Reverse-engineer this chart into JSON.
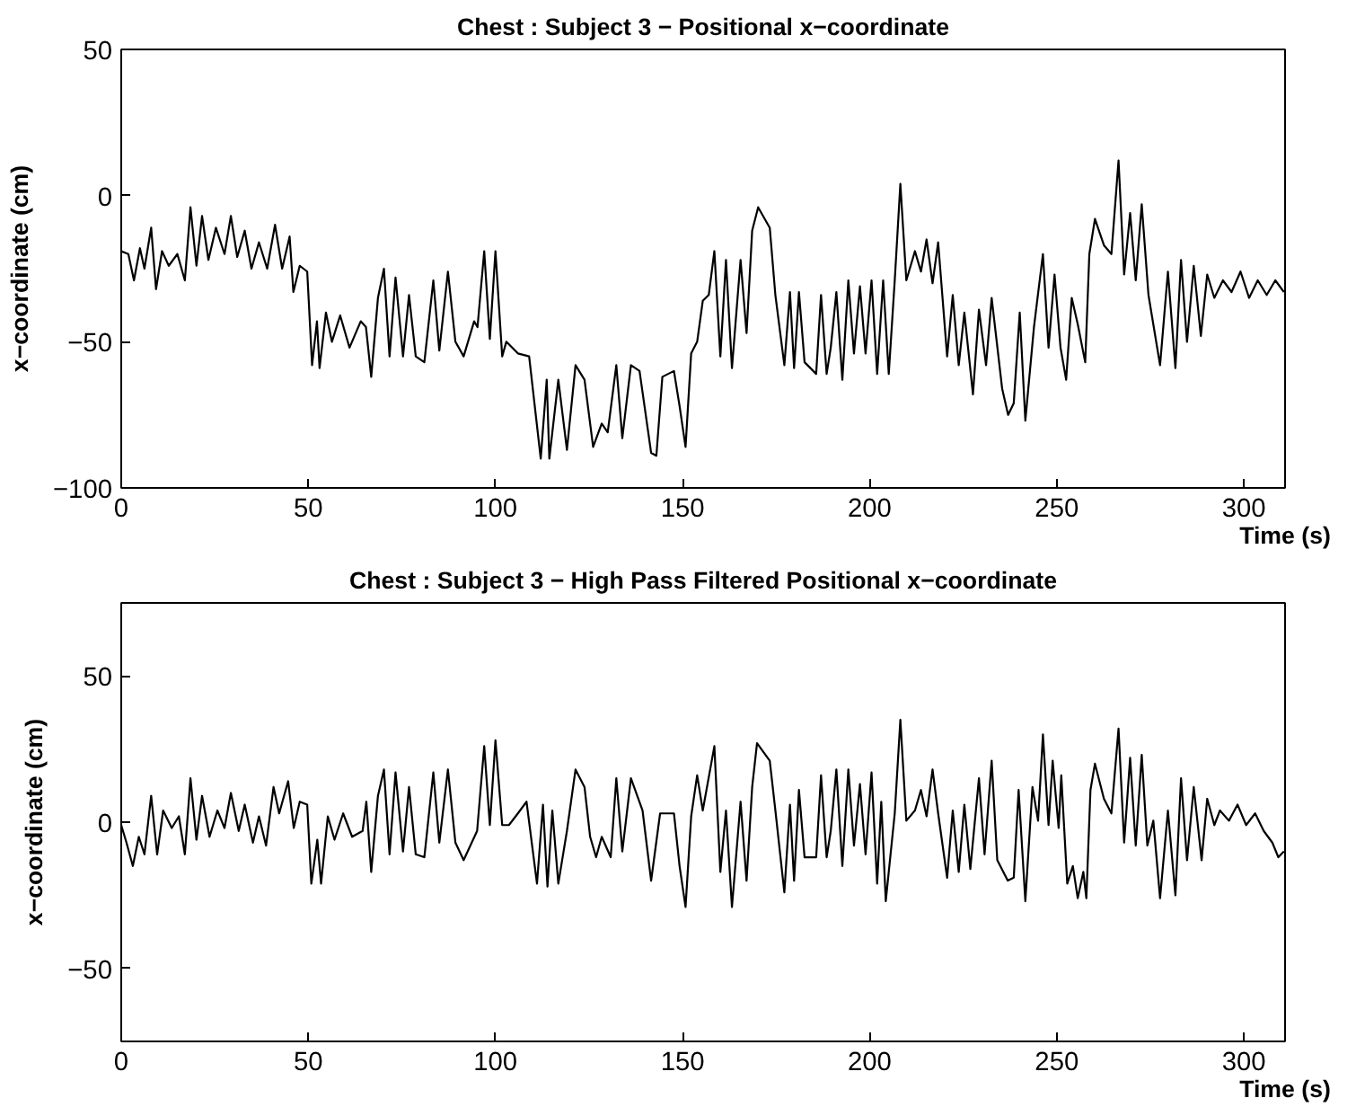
{
  "chart_data": [
    {
      "type": "line",
      "title": "Chest : Subject 3 − Positional x−coordinate",
      "xlabel": "Time (s)",
      "ylabel": "x−coordinate (cm)",
      "xlim": [
        0,
        311
      ],
      "ylim": [
        -100,
        50
      ],
      "xticks": [
        0,
        50,
        100,
        150,
        200,
        250,
        300
      ],
      "yticks": [
        -100,
        -50,
        0,
        50
      ],
      "series": [
        {
          "color": "#000000",
          "x": [
            0,
            1.9,
            3.4,
            5,
            6.2,
            8,
            9.3,
            10.9,
            12.7,
            15,
            17,
            18.5,
            20.1,
            21.6,
            23.3,
            25.3,
            27.6,
            29.3,
            31,
            33,
            34.8,
            36.8,
            39,
            41.1,
            43,
            45,
            46,
            47.7,
            49.7,
            51,
            52.3,
            53,
            54.7,
            56.3,
            58.5,
            61,
            64,
            65.4,
            66.8,
            68.6,
            70.2,
            71.7,
            73.3,
            75.3,
            76.9,
            78.7,
            81,
            83.4,
            85,
            87.3,
            89.3,
            91.5,
            94.3,
            95.2,
            97,
            98.5,
            100,
            101.8,
            102.9,
            106,
            109,
            112.1,
            113.7,
            114.4,
            116.8,
            119.1,
            121.4,
            123.8,
            126.1,
            128.4,
            130,
            132.3,
            133.9,
            136.2,
            138.5,
            141.6,
            143,
            144.6,
            147.7,
            149.2,
            150.8,
            152.3,
            153.9,
            155.4,
            157,
            158.5,
            160.1,
            161.6,
            163.2,
            165.5,
            167.1,
            168.6,
            170.2,
            173.3,
            174.8,
            177.2,
            178.7,
            179.8,
            181.1,
            182.6,
            185.7,
            187,
            188.5,
            189.6,
            191.1,
            192.7,
            194.3,
            195.8,
            197.4,
            198.9,
            200.5,
            202,
            203.6,
            205.1,
            206.7,
            208.2,
            209.8,
            212.1,
            213.7,
            215.2,
            216.8,
            218.3,
            220.7,
            222.2,
            223.8,
            225.3,
            227.6,
            229.2,
            231.1,
            232.6,
            235.4,
            237,
            238.5,
            240.1,
            241.6,
            243.9,
            246.3,
            247.8,
            249.4,
            251,
            252.5,
            254,
            255.6,
            257.6,
            258.7,
            260.2,
            262.6,
            264.6,
            266.5,
            268,
            269.6,
            271.1,
            272.7,
            274.5,
            277.6,
            279.7,
            281.7,
            283.2,
            284.8,
            286.6,
            288.5,
            290.2,
            292.1,
            294.4,
            296.7,
            299.1,
            301.4,
            303.7,
            306.1,
            308.4,
            310.7
          ],
          "values": [
            -19,
            -20,
            -29,
            -18,
            -25,
            -11,
            -32,
            -19,
            -24,
            -20,
            -29,
            -4,
            -24,
            -7,
            -22,
            -11,
            -20,
            -7,
            -21,
            -12,
            -25,
            -16,
            -25,
            -10,
            -25,
            -14,
            -33,
            -24,
            -26,
            -58,
            -43,
            -59,
            -40,
            -50,
            -41,
            -52,
            -43,
            -45,
            -62,
            -35,
            -25,
            -55,
            -28,
            -55,
            -34,
            -55,
            -57,
            -29,
            -53,
            -26,
            -50,
            -55,
            -43,
            -45,
            -19,
            -49,
            -19,
            -55,
            -50,
            -54,
            -55,
            -90,
            -63,
            -90,
            -63,
            -87,
            -58,
            -63,
            -86,
            -78,
            -81,
            -58,
            -83,
            -58,
            -60,
            -88,
            -89,
            -62,
            -60,
            -72,
            -86,
            -54,
            -50,
            -36,
            -34,
            -19,
            -55,
            -22,
            -59,
            -22,
            -47,
            -12,
            -4,
            -11,
            -34,
            -58,
            -33,
            -59,
            -33,
            -57,
            -61,
            -34,
            -61,
            -52,
            -33,
            -63,
            -29,
            -54,
            -31,
            -54,
            -29,
            -61,
            -29,
            -61,
            -29,
            4,
            -29,
            -19,
            -26,
            -15,
            -30,
            -16,
            -55,
            -34,
            -58,
            -40,
            -68,
            -39,
            -58,
            -35,
            -66,
            -75,
            -71,
            -40,
            -77,
            -45,
            -20,
            -52,
            -27,
            -52,
            -63,
            -35,
            -44,
            -57,
            -20,
            -8,
            -17,
            -20,
            12,
            -27,
            -6,
            -29,
            -3,
            -34,
            -58,
            -26,
            -59,
            -22,
            -50,
            -24,
            -48,
            -27,
            -35,
            -29,
            -33,
            -26,
            -35,
            -29,
            -34,
            -29,
            -33
          ]
        }
      ]
    },
    {
      "type": "line",
      "title": "Chest : Subject 3 − High Pass Filtered Positional x−coordinate",
      "xlabel": "Time (s)",
      "ylabel": "x−coordinate (cm)",
      "xlim": [
        0,
        311
      ],
      "ylim": [
        -75,
        75
      ],
      "xticks": [
        0,
        50,
        100,
        150,
        200,
        250,
        300
      ],
      "yticks": [
        -50,
        0,
        50
      ],
      "series": [
        {
          "color": "#000000",
          "x": [
            0,
            1.4,
            3.1,
            4.7,
            6.2,
            8,
            9.6,
            11.2,
            13.5,
            15.4,
            17,
            18.5,
            20.1,
            21.6,
            23.6,
            25.7,
            27.6,
            29.3,
            31.4,
            33,
            35.2,
            36.8,
            38.7,
            40.7,
            42.2,
            44.6,
            46.1,
            47.7,
            49.7,
            50.8,
            52.4,
            53.4,
            55.2,
            57,
            59.3,
            61.7,
            64.5,
            65.5,
            66.8,
            68.6,
            70.2,
            71.7,
            73.3,
            75.3,
            76.9,
            78.7,
            81,
            83.4,
            85,
            87.3,
            89.3,
            91.5,
            95.1,
            97,
            98.5,
            100,
            101.8,
            103.6,
            106,
            108.3,
            111.1,
            112.7,
            113.9,
            115.2,
            116.8,
            119.1,
            121.4,
            123.8,
            125.3,
            126.9,
            128.4,
            130.8,
            132.3,
            133.9,
            136.2,
            139.3,
            141.6,
            144,
            147.7,
            149.2,
            150.8,
            152.3,
            153.9,
            155.4,
            158.5,
            160.1,
            161.6,
            163.2,
            165.5,
            167.1,
            168.6,
            169.9,
            173.3,
            174.8,
            177.2,
            178.7,
            179.8,
            181.1,
            182.6,
            185.7,
            187,
            188.5,
            189.6,
            191.1,
            192.7,
            194.3,
            195.8,
            197.4,
            198.9,
            200.5,
            202,
            203.1,
            204.3,
            206.7,
            208.2,
            209.8,
            212.1,
            213.7,
            215.2,
            216.8,
            218.3,
            220.7,
            222.2,
            223.8,
            225.3,
            226.9,
            229.2,
            230.7,
            232.6,
            234.1,
            236.9,
            238.5,
            239.8,
            241.6,
            243.5,
            245,
            246.3,
            247.8,
            248.9,
            250.5,
            251.2,
            252.8,
            254.3,
            255.6,
            257.1,
            257.9,
            259,
            260.2,
            262.6,
            264.6,
            266.5,
            268,
            269.6,
            271.1,
            272.7,
            274.2,
            275.8,
            277.6,
            279.7,
            281.7,
            283.2,
            284.8,
            286.6,
            288.7,
            290.2,
            292.1,
            293.6,
            296,
            298.3,
            300.6,
            303,
            305.3,
            307.6,
            309.2,
            310.7
          ],
          "values": [
            -1,
            -7,
            -15,
            -5,
            -11,
            9,
            -11,
            4,
            -2,
            2,
            -11,
            15,
            -6,
            9,
            -5,
            4,
            -2,
            10,
            -3,
            6,
            -7,
            2,
            -8,
            12,
            3,
            14,
            -2,
            7,
            6,
            -21,
            -6,
            -21,
            2,
            -6,
            3,
            -5,
            -3,
            7,
            -17,
            9,
            18,
            -11,
            17,
            -10,
            12,
            -11,
            -12,
            17,
            -7,
            18,
            -7,
            -13,
            -3,
            26,
            -1,
            28,
            -1,
            -1,
            3,
            7,
            -21,
            6,
            -22,
            4,
            -21,
            -3,
            18,
            12,
            -5,
            -12,
            -5,
            -12,
            15,
            -10,
            15,
            4,
            -20,
            3,
            3,
            -15,
            -29,
            2,
            16,
            4,
            26,
            -17,
            4,
            -29,
            7,
            -20,
            12,
            27,
            21,
            4,
            -24,
            6,
            -20,
            11,
            -12,
            -12,
            16,
            -12,
            -3,
            18,
            -15,
            18,
            -8,
            13,
            -11,
            17,
            -21,
            7,
            -27,
            3,
            35,
            0.5,
            4,
            11,
            2,
            18,
            3,
            -19,
            4,
            -17,
            6,
            -16,
            15,
            -11,
            21,
            -13,
            -20,
            -19,
            11,
            -27,
            12,
            0.5,
            30,
            -1,
            21,
            -2,
            16,
            -21,
            -15,
            -26,
            -17,
            -26,
            11,
            20,
            8,
            3,
            32,
            -7,
            22,
            -8,
            23,
            -8,
            0.5,
            -26,
            4,
            -25,
            15,
            -13,
            12,
            -13,
            8,
            -1,
            4,
            0.5,
            6,
            -1,
            3,
            -3,
            -7,
            -12,
            -10
          ]
        }
      ]
    }
  ]
}
